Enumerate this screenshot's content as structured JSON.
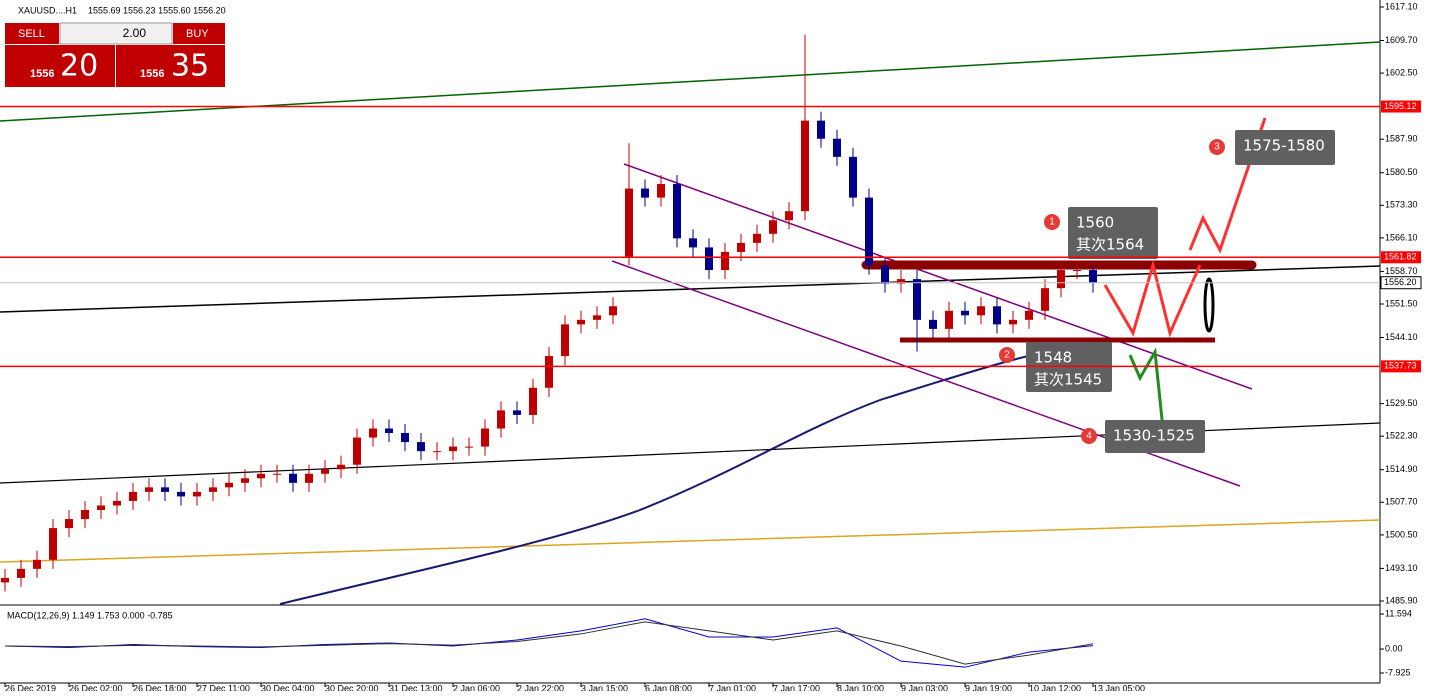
{
  "chart_data": {
    "type": "candlestick",
    "symbol": "XAUUSD....H1",
    "header_prices": "1555.69 1556.23 1555.60 1556.20",
    "trade_panel": {
      "sell": "SELL",
      "buy": "BUY",
      "lot": "2.00",
      "sell_big": "1556",
      "sell_pips": "20",
      "buy_big": "1556",
      "buy_pips": "35"
    },
    "ylim": [
      1485.9,
      1617.1
    ],
    "yticks": [
      {
        "value": 1617.1,
        "label": "1617.10"
      },
      {
        "value": 1609.7,
        "label": "1609.70"
      },
      {
        "value": 1602.5,
        "label": "1602.50"
      },
      {
        "value": 1587.9,
        "label": "1587.90"
      },
      {
        "value": 1580.5,
        "label": "1580.50"
      },
      {
        "value": 1573.3,
        "label": "1573.30"
      },
      {
        "value": 1566.1,
        "label": "1566.10"
      },
      {
        "value": 1558.7,
        "label": "1558.70"
      },
      {
        "value": 1551.5,
        "label": "1551.50"
      },
      {
        "value": 1544.1,
        "label": "1544.10"
      },
      {
        "value": 1529.5,
        "label": "1529.50"
      },
      {
        "value": 1522.3,
        "label": "1522.30"
      },
      {
        "value": 1514.9,
        "label": "1514.90"
      },
      {
        "value": 1507.7,
        "label": "1507.70"
      },
      {
        "value": 1500.5,
        "label": "1500.50"
      },
      {
        "value": 1493.1,
        "label": "1493.10"
      },
      {
        "value": 1485.9,
        "label": "1485.90"
      }
    ],
    "xticks": [
      {
        "value": 0,
        "label": "26 Dec 2019"
      },
      {
        "value": 4,
        "label": "26 Dec 02:00"
      },
      {
        "value": 8,
        "label": "26 Dec 18:00"
      },
      {
        "value": 12,
        "label": "27 Dec 11:00"
      },
      {
        "value": 16,
        "label": "30 Dec 04:00"
      },
      {
        "value": 20,
        "label": "30 Dec 20:00"
      },
      {
        "value": 24,
        "label": "31 Dec 13:00"
      },
      {
        "value": 28,
        "label": "2 Jan 06:00"
      },
      {
        "value": 32,
        "label": "2 Jan 22:00"
      },
      {
        "value": 36,
        "label": "3 Jan 15:00"
      },
      {
        "value": 40,
        "label": "6 Jan 08:00"
      },
      {
        "value": 44,
        "label": "7 Jan 01:00"
      },
      {
        "value": 48,
        "label": "7 Jan 17:00"
      },
      {
        "value": 52,
        "label": "8 Jan 10:00"
      },
      {
        "value": 56,
        "label": "9 Jan 03:00"
      },
      {
        "value": 60,
        "label": "9 Jan 19:00"
      },
      {
        "value": 64,
        "label": "10 Jan 12:00"
      },
      {
        "value": 68,
        "label": "13 Jan 05:00"
      }
    ],
    "up_color": "#c00000",
    "down_color": "#00008b",
    "open": [
      1490,
      1491,
      1493,
      1495,
      1502,
      1504,
      1506,
      1507,
      1508,
      1510,
      1511,
      1510,
      1509,
      1510,
      1511,
      1512,
      1513,
      1514,
      1514,
      1512,
      1514,
      1515,
      1516,
      1522,
      1524,
      1523,
      1521,
      1519,
      1519,
      1520,
      1520,
      1524,
      1528,
      1527,
      1533,
      1540,
      1547,
      1548,
      1549,
      1562,
      1577,
      1575,
      1578,
      1566,
      1564,
      1559,
      1563,
      1565,
      1567,
      1570,
      1572,
      1592,
      1588,
      1584,
      1575,
      1560,
      1556,
      1557,
      1548,
      1546,
      1550,
      1549,
      1551,
      1547,
      1548,
      1550,
      1555,
      1559,
      1559
    ],
    "high": [
      1493,
      1495,
      1497,
      1504,
      1506,
      1508,
      1509,
      1510,
      1512,
      1513,
      1513,
      1512,
      1512,
      1513,
      1514,
      1515,
      1516,
      1516,
      1516,
      1516,
      1517,
      1518,
      1524,
      1526,
      1526,
      1525,
      1523,
      1521,
      1522,
      1522,
      1526,
      1530,
      1530,
      1535,
      1542,
      1549,
      1550,
      1551,
      1553,
      1587,
      1579,
      1580,
      1580,
      1568,
      1566,
      1565,
      1567,
      1569,
      1572,
      1574,
      1611,
      1594,
      1590,
      1586,
      1577,
      1562,
      1559,
      1559,
      1550,
      1552,
      1552,
      1553,
      1553,
      1550,
      1552,
      1557,
      1561,
      1561,
      1560
    ],
    "low": [
      1488,
      1489,
      1491,
      1493,
      1500,
      1502,
      1504,
      1505,
      1506,
      1508,
      1508,
      1507,
      1507,
      1508,
      1509,
      1510,
      1511,
      1512,
      1510,
      1510,
      1512,
      1513,
      1514,
      1520,
      1521,
      1519,
      1517,
      1517,
      1517,
      1518,
      1518,
      1522,
      1525,
      1525,
      1531,
      1538,
      1545,
      1546,
      1547,
      1560,
      1573,
      1573,
      1564,
      1562,
      1557,
      1557,
      1561,
      1563,
      1565,
      1568,
      1570,
      1586,
      1582,
      1573,
      1558,
      1554,
      1554,
      1541,
      1544,
      1544,
      1547,
      1547,
      1545,
      1545,
      1546,
      1548,
      1553,
      1557,
      1554
    ],
    "close": [
      1491,
      1493,
      1495,
      1502,
      1504,
      1506,
      1507,
      1508,
      1510,
      1511,
      1510,
      1509,
      1510,
      1511,
      1512,
      1513,
      1514,
      1514,
      1512,
      1514,
      1515,
      1516,
      1522,
      1524,
      1523,
      1521,
      1519,
      1519,
      1520,
      1520,
      1524,
      1528,
      1527,
      1533,
      1540,
      1547,
      1548,
      1549,
      1551,
      1577,
      1575,
      1578,
      1566,
      1564,
      1559,
      1563,
      1565,
      1567,
      1570,
      1572,
      1592,
      1588,
      1584,
      1575,
      1560,
      1556,
      1557,
      1548,
      1546,
      1550,
      1549,
      1551,
      1547,
      1548,
      1550,
      1555,
      1559,
      1559,
      1556.2
    ],
    "levels": [
      {
        "value": 1595.12,
        "color": "#ff0000"
      },
      {
        "value": 1561.82,
        "color": "#ff0000"
      },
      {
        "value": 1537.73,
        "color": "#ff0000"
      },
      {
        "value": {
          "value": 1556.2,
          "label": "1556.20"
        },
        "color": "#c0c0c0"
      }
    ],
    "annotations": [
      {
        "number": "1",
        "lines": [
          "1560",
          "其次1564"
        ]
      },
      {
        "number": "2",
        "lines": [
          "1548",
          "其次1545"
        ]
      },
      {
        "number": "3",
        "lines": [
          "1575-1580"
        ]
      },
      {
        "number": "4",
        "lines": [
          "1530-1525"
        ]
      }
    ],
    "macd": {
      "title": "MACD(12,26,9) 1.149 1.753 0.000 -0.785",
      "ylim": [
        -7.925,
        11.594
      ],
      "yticks": [
        {
          "value": 11.594,
          "label": "11.594"
        },
        {
          "value": 0,
          "label": "0.00"
        },
        {
          "value": -7.925,
          "label": "-7.925"
        }
      ],
      "x": [
        0,
        4,
        8,
        12,
        16,
        20,
        24,
        28,
        32,
        36,
        40,
        44,
        48,
        52,
        56,
        60,
        64,
        68
      ],
      "series": [
        {
          "color": "#0000cd",
          "values": [
            1,
            0.5,
            1.5,
            0.8,
            0.5,
            1.5,
            2,
            1,
            3,
            6,
            10,
            4,
            4,
            7,
            -4,
            -6,
            -1,
            1.149
          ]
        },
        {
          "color": "#303030",
          "values": [
            1,
            0.8,
            1.2,
            1,
            0.7,
            1.2,
            1.8,
            1.3,
            2.5,
            5,
            9,
            6,
            3,
            6,
            1,
            -5,
            -2,
            1.753
          ]
        }
      ]
    }
  }
}
